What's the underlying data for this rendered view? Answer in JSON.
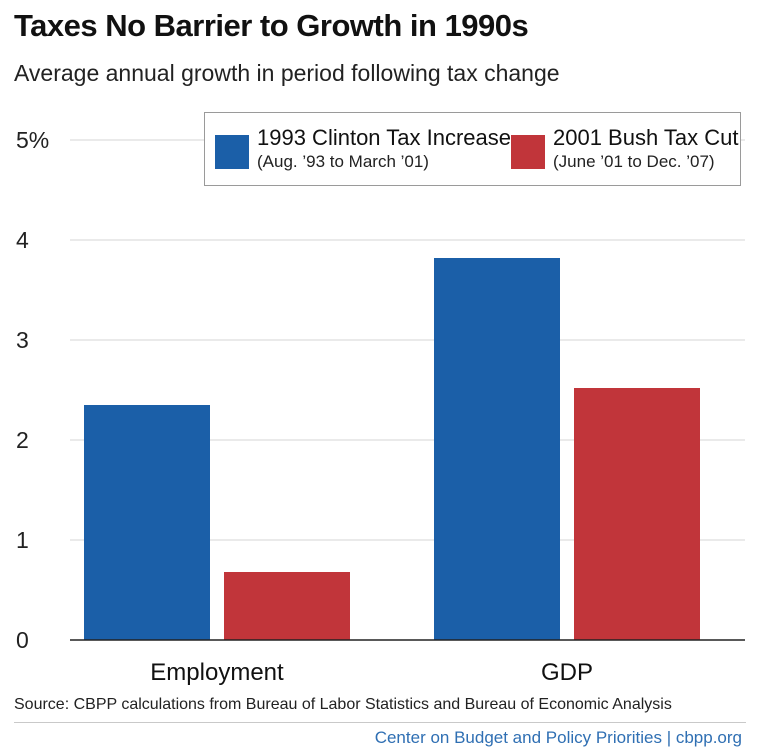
{
  "chart_data": {
    "type": "bar",
    "title": "Taxes No Barrier to Growth in 1990s",
    "subtitle": "Average annual growth in period following tax change",
    "categories": [
      "Employment",
      "GDP"
    ],
    "series": [
      {
        "name": "1993 Clinton Tax Increase",
        "period": "(Aug. ’93 to March ’01)",
        "color": "#1b5fa8",
        "values": [
          2.35,
          3.82
        ]
      },
      {
        "name": "2001 Bush Tax Cut",
        "period": "(June ’01 to Dec. ’07)",
        "color": "#c1353a",
        "values": [
          0.68,
          2.52
        ]
      }
    ],
    "yticks": [
      "0",
      "1",
      "2",
      "3",
      "4",
      "5%"
    ],
    "ylim": [
      0,
      5
    ],
    "grid": true,
    "legend_position": "top-right"
  },
  "source": "Source: CBPP calculations from Bureau of Labor Statistics and Bureau of Economic Analysis",
  "credit": "Center on Budget and Policy Priorities | cbpp.org"
}
